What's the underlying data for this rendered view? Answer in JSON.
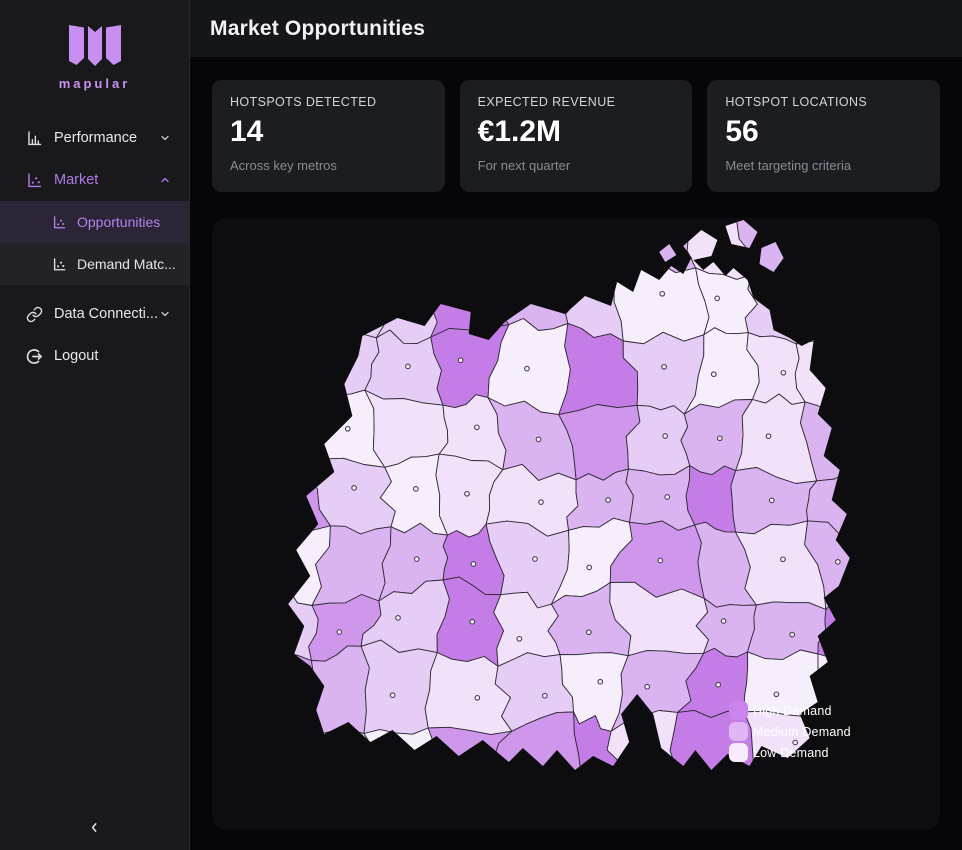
{
  "sidebar": {
    "logo_text": "mapular",
    "performance": {
      "label": "Performance"
    },
    "market": {
      "label": "Market"
    },
    "opportunities": {
      "label": "Opportunities"
    },
    "demand": {
      "label": "Demand Matc..."
    },
    "data_connections": {
      "label": "Data Connecti..."
    },
    "logout": {
      "label": "Logout"
    }
  },
  "header": {
    "title": "Market Opportunities"
  },
  "stats": [
    {
      "label": "HOTSPOTS DETECTED",
      "value": "14",
      "sub": "Across key metros"
    },
    {
      "label": "EXPECTED REVENUE",
      "value": "€1.2M",
      "sub": "For next quarter"
    },
    {
      "label": "HOTSPOT LOCATIONS",
      "value": "56",
      "sub": "Meet targeting criteria"
    }
  ],
  "map": {
    "legend": [
      {
        "label": "High Demand",
        "color": "#cb84ec"
      },
      {
        "label": "Medium Demand",
        "color": "#e1b6f4"
      },
      {
        "label": "Low Demand",
        "color": "#f7ebfc"
      }
    ],
    "palette": [
      "#f7eefb",
      "#f1e2f9",
      "#e6cdf5",
      "#dab4f0",
      "#cf97ec",
      "#c47ce6"
    ],
    "stroke": "#332a39",
    "seed": 11
  }
}
